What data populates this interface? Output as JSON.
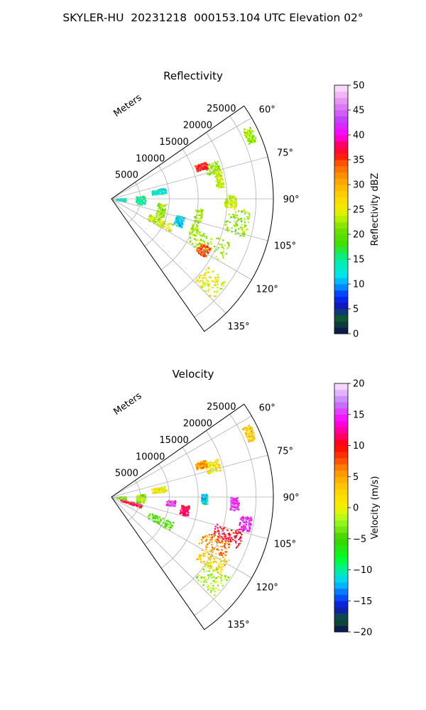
{
  "figure": {
    "title": "SKYLER-HU  20231218  000153.104 UTC Elevation 02°"
  },
  "chart_data": [
    {
      "type": "heatmap",
      "projection": "polar-sector",
      "title": "Reflectivity",
      "range_axis_label": "Meters",
      "range_ticks": [
        5000,
        10000,
        15000,
        20000,
        25000
      ],
      "range_tick_labels": [
        "5000",
        "10000",
        "15000",
        "20000",
        "25000"
      ],
      "range_lim": [
        0,
        28000
      ],
      "azimuth_ticks": [
        60,
        75,
        90,
        105,
        120,
        135
      ],
      "azimuth_tick_labels": [
        "60°",
        "75°",
        "90°",
        "105°",
        "120°",
        "135°"
      ],
      "azimuth_lim": [
        55,
        145
      ],
      "grid": true,
      "colorbar": {
        "label": "Reflectivity dBZ",
        "min": 0,
        "max": 50,
        "ticks": [
          0,
          5,
          10,
          15,
          20,
          25,
          30,
          35,
          40,
          45,
          50
        ],
        "tick_labels": [
          "0",
          "5",
          "10",
          "15",
          "20",
          "25",
          "30",
          "35",
          "40",
          "45",
          "50"
        ]
      },
      "echoes": [
        {
          "az": [
            62,
            68
          ],
          "r": [
            25500,
            27000
          ],
          "value": 22
        },
        {
          "az": [
            70,
            76
          ],
          "r": [
            17000,
            19500
          ],
          "value": 22
        },
        {
          "az": [
            68,
            72
          ],
          "r": [
            15500,
            17500
          ],
          "value": 36
        },
        {
          "az": [
            74,
            84
          ],
          "r": [
            18200,
            19500
          ],
          "value": 24
        },
        {
          "az": [
            78,
            84
          ],
          "r": [
            7000,
            9500
          ],
          "value": 13
        },
        {
          "az": [
            84,
            100
          ],
          "r": [
            4200,
            5800
          ],
          "value": 15
        },
        {
          "az": [
            86,
            100
          ],
          "r": [
            800,
            2400
          ],
          "value": 13
        },
        {
          "az": [
            95,
            112
          ],
          "r": [
            8000,
            9400
          ],
          "value": 22
        },
        {
          "az": [
            96,
            114
          ],
          "r": [
            14500,
            15800
          ],
          "value": 22
        },
        {
          "az": [
            94,
            106
          ],
          "r": [
            20000,
            24000
          ],
          "value": 22
        },
        {
          "az": [
            88,
            94
          ],
          "r": [
            19500,
            21500
          ],
          "value": 24
        },
        {
          "az": [
            110,
            120
          ],
          "r": [
            15000,
            22000
          ],
          "value": 22
        },
        {
          "az": [
            116,
            122
          ],
          "r": [
            17000,
            19000
          ],
          "value": 34
        },
        {
          "az": [
            125,
            135
          ],
          "r": [
            20000,
            24500
          ],
          "value": 25
        },
        {
          "az": [
            112,
            120
          ],
          "r": [
            7000,
            11500
          ],
          "value": 24
        },
        {
          "az": [
            104,
            112
          ],
          "r": [
            11500,
            13000
          ],
          "value": 12
        }
      ]
    },
    {
      "type": "heatmap",
      "projection": "polar-sector",
      "title": "Velocity",
      "range_axis_label": "Meters",
      "range_ticks": [
        5000,
        10000,
        15000,
        20000,
        25000
      ],
      "range_tick_labels": [
        "5000",
        "10000",
        "15000",
        "20000",
        "25000"
      ],
      "range_lim": [
        0,
        28000
      ],
      "azimuth_ticks": [
        60,
        75,
        90,
        105,
        120,
        135
      ],
      "azimuth_tick_labels": [
        "60°",
        "75°",
        "90°",
        "105°",
        "120°",
        "135°"
      ],
      "azimuth_lim": [
        55,
        145
      ],
      "grid": true,
      "colorbar": {
        "label": "Velocity (m/s)",
        "min": -20,
        "max": 20,
        "ticks": [
          -20,
          -15,
          -10,
          -5,
          0,
          5,
          10,
          15,
          20
        ],
        "tick_labels": [
          "−20",
          "−15",
          "−10",
          "−5",
          "0",
          "5",
          "10",
          "15",
          "20"
        ]
      },
      "echoes": [
        {
          "az": [
            62,
            68
          ],
          "r": [
            25500,
            27000
          ],
          "value": 3
        },
        {
          "az": [
            70,
            76
          ],
          "r": [
            17000,
            19500
          ],
          "value": 1
        },
        {
          "az": [
            68,
            72
          ],
          "r": [
            15500,
            17500
          ],
          "value": 5
        },
        {
          "az": [
            78,
            84
          ],
          "r": [
            7000,
            9500
          ],
          "value": 1
        },
        {
          "az": [
            84,
            100
          ],
          "r": [
            4200,
            5800
          ],
          "value": -2
        },
        {
          "az": [
            86,
            100
          ],
          "r": [
            800,
            2400
          ],
          "value": -3
        },
        {
          "az": [
            93,
            98
          ],
          "r": [
            9500,
            11000
          ],
          "value": 15
        },
        {
          "az": [
            96,
            104
          ],
          "r": [
            12000,
            13500
          ],
          "value": 11
        },
        {
          "az": [
            88,
            94
          ],
          "r": [
            15500,
            16500
          ],
          "value": -12
        },
        {
          "az": [
            90,
            96
          ],
          "r": [
            20500,
            22000
          ],
          "value": 15
        },
        {
          "az": [
            98,
            104
          ],
          "r": [
            22500,
            24500
          ],
          "value": 15
        },
        {
          "az": [
            104,
            112
          ],
          "r": [
            18500,
            23500
          ],
          "value": 10
        },
        {
          "az": [
            110,
            118
          ],
          "r": [
            17000,
            22000
          ],
          "value": 6
        },
        {
          "az": [
            118,
            126
          ],
          "r": [
            18000,
            23000
          ],
          "value": 3
        },
        {
          "az": [
            124,
            134
          ],
          "r": [
            20000,
            24500
          ],
          "value": -2
        },
        {
          "az": [
            112,
            120
          ],
          "r": [
            7000,
            11500
          ],
          "value": -4
        },
        {
          "az": [
            103,
            110
          ],
          "r": [
            1500,
            5500
          ],
          "value": 10
        }
      ]
    }
  ]
}
